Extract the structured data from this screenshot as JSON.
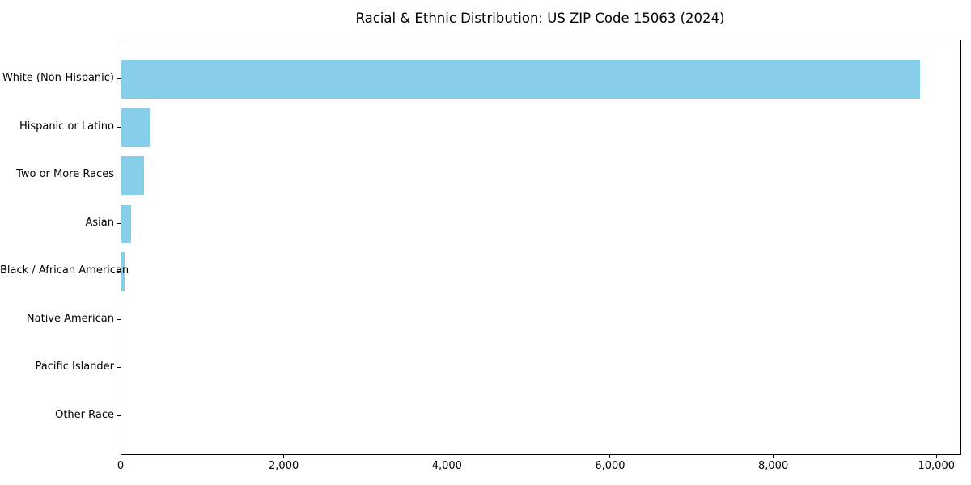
{
  "chart_data": {
    "type": "bar",
    "orientation": "horizontal",
    "title": "Racial & Ethnic Distribution: US ZIP Code 15063 (2024)",
    "categories": [
      "White (Non-Hispanic)",
      "Hispanic or Latino",
      "Two or More Races",
      "Asian",
      "Black / African American",
      "Native American",
      "Pacific Islander",
      "Other Race"
    ],
    "values": [
      9790,
      345,
      275,
      120,
      40,
      0,
      0,
      0
    ],
    "bar_color": "#87CEEB",
    "axis_color": "#000000",
    "text_color": "#000000",
    "xlabel": "",
    "ylabel": "",
    "xlim": [
      0,
      10285
    ],
    "x_ticks": [
      0,
      2000,
      4000,
      6000,
      8000,
      10000
    ],
    "x_tick_labels": [
      "0",
      "2,000",
      "4,000",
      "6,000",
      "8,000",
      "10,000"
    ],
    "grid": false,
    "legend": "none"
  }
}
